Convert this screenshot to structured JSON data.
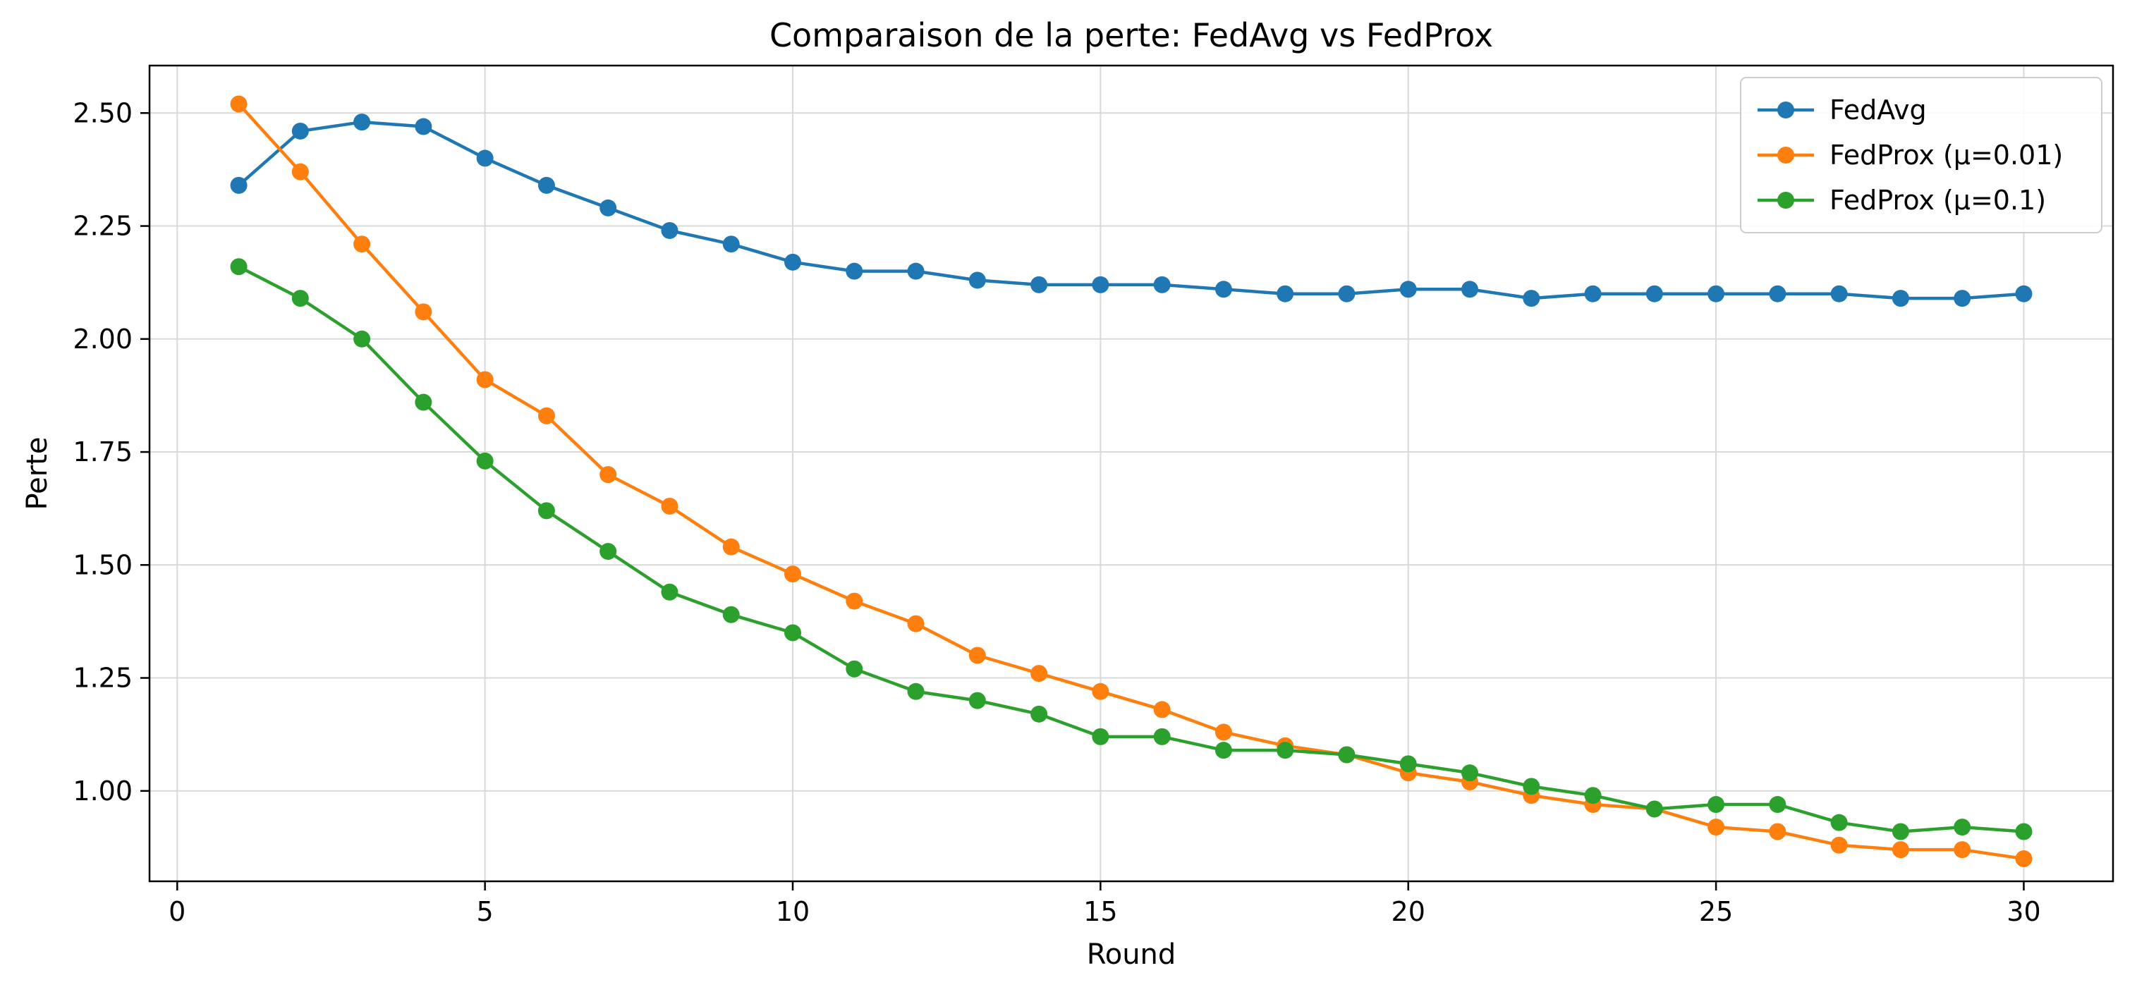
{
  "chart_data": {
    "type": "line",
    "title": "Comparaison de la perte: FedAvg vs FedProx",
    "xlabel": "Round",
    "ylabel": "Perte",
    "xlim": [
      -0.45,
      31.45
    ],
    "ylim": [
      0.8,
      2.605
    ],
    "xticks": [
      0,
      5,
      10,
      15,
      20,
      25,
      30
    ],
    "xtick_labels": [
      "0",
      "5",
      "10",
      "15",
      "20",
      "25",
      "30"
    ],
    "yticks": [
      1.0,
      1.25,
      1.5,
      1.75,
      2.0,
      2.25,
      2.5
    ],
    "ytick_labels": [
      "1.00",
      "1.25",
      "1.50",
      "1.75",
      "2.00",
      "2.25",
      "2.50"
    ],
    "grid": true,
    "legend_position": "top-right",
    "x": [
      1,
      2,
      3,
      4,
      5,
      6,
      7,
      8,
      9,
      10,
      11,
      12,
      13,
      14,
      15,
      16,
      17,
      18,
      19,
      20,
      21,
      22,
      23,
      24,
      25,
      26,
      27,
      28,
      29,
      30
    ],
    "series": [
      {
        "name": "FedAvg",
        "color": "#1f77b4",
        "values": [
          2.34,
          2.46,
          2.48,
          2.47,
          2.4,
          2.34,
          2.29,
          2.24,
          2.21,
          2.17,
          2.15,
          2.15,
          2.13,
          2.12,
          2.12,
          2.12,
          2.11,
          2.1,
          2.1,
          2.11,
          2.11,
          2.09,
          2.1,
          2.1,
          2.1,
          2.1,
          2.1,
          2.09,
          2.09,
          2.1
        ]
      },
      {
        "name": "FedProx (μ=0.01)",
        "color": "#ff7f0e",
        "values": [
          2.52,
          2.37,
          2.21,
          2.06,
          1.91,
          1.83,
          1.7,
          1.63,
          1.54,
          1.48,
          1.42,
          1.37,
          1.3,
          1.26,
          1.22,
          1.18,
          1.13,
          1.1,
          1.08,
          1.04,
          1.02,
          0.99,
          0.97,
          0.96,
          0.92,
          0.91,
          0.88,
          0.87,
          0.87,
          0.85
        ]
      },
      {
        "name": "FedProx (μ=0.1)",
        "color": "#2ca02c",
        "values": [
          2.16,
          2.09,
          2.0,
          1.86,
          1.73,
          1.62,
          1.53,
          1.44,
          1.39,
          1.35,
          1.27,
          1.22,
          1.2,
          1.17,
          1.12,
          1.12,
          1.09,
          1.09,
          1.08,
          1.06,
          1.04,
          1.01,
          0.99,
          0.96,
          0.97,
          0.97,
          0.93,
          0.91,
          0.92,
          0.91
        ]
      }
    ]
  }
}
